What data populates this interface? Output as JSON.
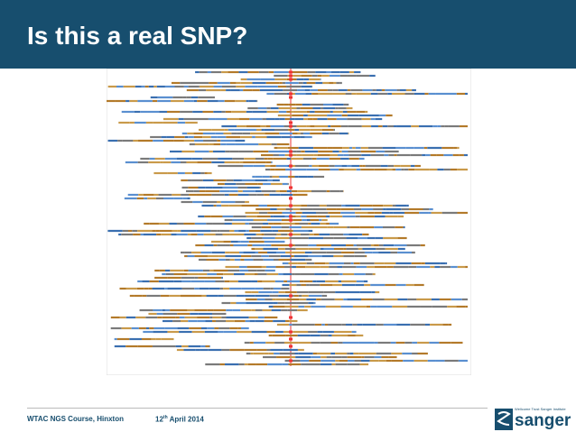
{
  "header": {
    "title": "Is this a real SNP?"
  },
  "footer": {
    "course": "WTAC NGS Course, Hinxton",
    "date_day": "12",
    "date_suffix": "th",
    "date_rest": "April 2014",
    "logo": {
      "small": "Wellcome Trust Sanger Institute",
      "name": "sanger"
    }
  }
}
